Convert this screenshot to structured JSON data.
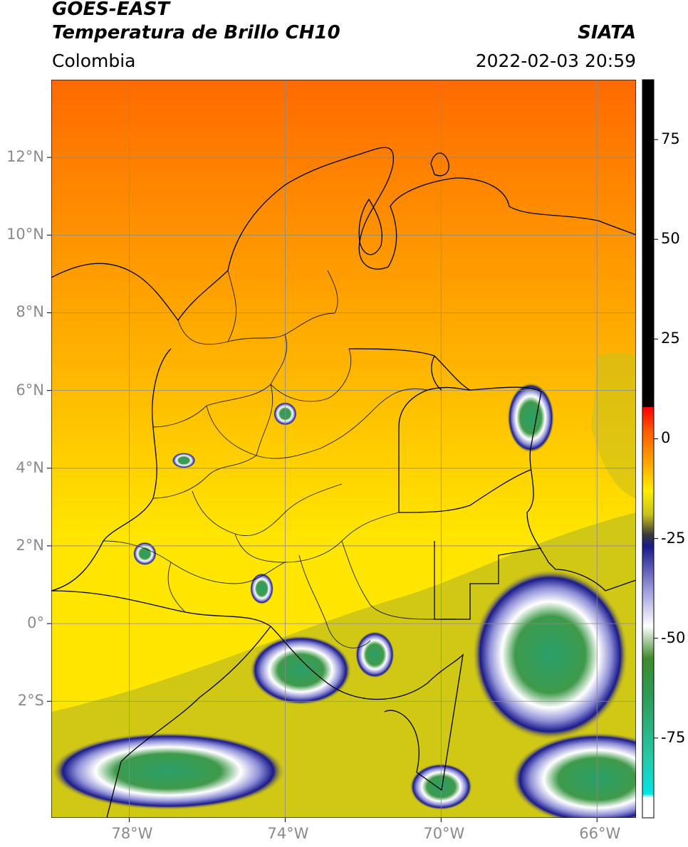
{
  "header": {
    "satellite": "GOES-EAST",
    "product": "Temperatura de Brillo CH10",
    "region": "Colombia",
    "agency": "SIATA",
    "datetime": "2022-02-03 20:59"
  },
  "axes": {
    "lon_range": [
      -80,
      -65
    ],
    "lat_range": [
      -5,
      14
    ],
    "lon_ticks": [
      {
        "value": -78,
        "label": "78°W"
      },
      {
        "value": -74,
        "label": "74°W"
      },
      {
        "value": -70,
        "label": "70°W"
      },
      {
        "value": -66,
        "label": "66°W"
      }
    ],
    "lat_ticks": [
      {
        "value": 12,
        "label": "12°N"
      },
      {
        "value": 10,
        "label": "10°N"
      },
      {
        "value": 8,
        "label": "8°N"
      },
      {
        "value": 6,
        "label": "6°N"
      },
      {
        "value": 4,
        "label": "4°N"
      },
      {
        "value": 2,
        "label": "2°N"
      },
      {
        "value": 0,
        "label": "0°"
      },
      {
        "value": -2,
        "label": "2°S"
      }
    ],
    "grid": true
  },
  "colorbar": {
    "range": [
      -95,
      90
    ],
    "ticks": [
      {
        "value": 75,
        "label": "75"
      },
      {
        "value": 50,
        "label": "50"
      },
      {
        "value": 25,
        "label": "25"
      },
      {
        "value": 0,
        "label": "0"
      },
      {
        "value": -25,
        "label": "-25"
      },
      {
        "value": -50,
        "label": "-50"
      },
      {
        "value": -75,
        "label": "-75"
      }
    ],
    "stops": [
      {
        "value": 90,
        "color": "#000000"
      },
      {
        "value": 8,
        "color": "#000000"
      },
      {
        "value": 7.9,
        "color": "#ff0000"
      },
      {
        "value": 2,
        "color": "#ff5a00"
      },
      {
        "value": -6,
        "color": "#ffa500"
      },
      {
        "value": -13,
        "color": "#ffee00"
      },
      {
        "value": -19,
        "color": "#c9c21a"
      },
      {
        "value": -24,
        "color": "#3b3b3b"
      },
      {
        "value": -27,
        "color": "#1a1a8a"
      },
      {
        "value": -38,
        "color": "#9d9ddf"
      },
      {
        "value": -47,
        "color": "#ffffff"
      },
      {
        "value": -55,
        "color": "#3f8b2d"
      },
      {
        "value": -64,
        "color": "#2e9a55"
      },
      {
        "value": -80,
        "color": "#27c9a8"
      },
      {
        "value": -89,
        "color": "#00e5e5"
      },
      {
        "value": -90,
        "color": "#ffffff"
      },
      {
        "value": -95,
        "color": "#ffffff"
      }
    ]
  },
  "field": {
    "base_colors": {
      "north": "#ff6a00",
      "mid": "#ffb300",
      "south": "#ffe600"
    },
    "cloud_clusters": [
      {
        "lon": -67.2,
        "lat": -0.8,
        "rx": 2.0,
        "ry": 2.2
      },
      {
        "lon": -66.0,
        "lat": -4.0,
        "rx": 2.2,
        "ry": 1.2
      },
      {
        "lon": -77.0,
        "lat": -3.8,
        "rx": 3.0,
        "ry": 1.0
      },
      {
        "lon": -73.6,
        "lat": -1.2,
        "rx": 1.3,
        "ry": 0.9
      },
      {
        "lon": -71.7,
        "lat": -0.8,
        "rx": 0.5,
        "ry": 0.6
      },
      {
        "lon": -67.7,
        "lat": 5.3,
        "rx": 0.6,
        "ry": 0.9
      },
      {
        "lon": -74.0,
        "lat": 5.4,
        "rx": 0.3,
        "ry": 0.3
      },
      {
        "lon": -76.6,
        "lat": 4.2,
        "rx": 0.3,
        "ry": 0.2
      },
      {
        "lon": -77.6,
        "lat": 1.8,
        "rx": 0.3,
        "ry": 0.3
      },
      {
        "lon": -74.6,
        "lat": 0.9,
        "rx": 0.3,
        "ry": 0.4
      },
      {
        "lon": -70.0,
        "lat": -4.2,
        "rx": 0.8,
        "ry": 0.6
      }
    ]
  }
}
